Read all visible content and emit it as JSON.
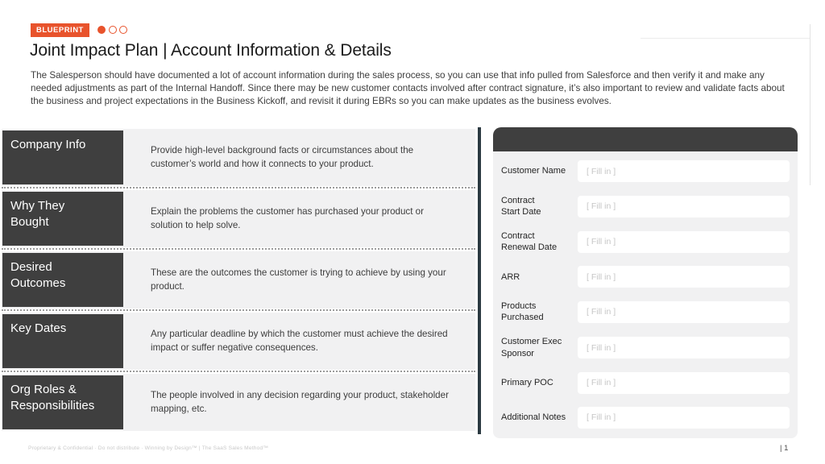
{
  "badge": {
    "label": "BLUEPRINT"
  },
  "progress_dots": {
    "total": 3,
    "active_index": 0
  },
  "header": {
    "title": "Joint Impact Plan | Account Information & Details",
    "description": "The Salesperson should have documented a lot of account information during the sales process, so you can use that info pulled from Salesforce and then verify it and make any needed adjustments as part of the Internal Handoff. Since there may be new customer contacts involved after contract signature, it’s also important to review and validate facts about the business and project expectations in the Business Kickoff, and revisit it during EBRs so you can make updates as the business evolves."
  },
  "info_table": {
    "rows": [
      {
        "label": "Company Info",
        "description": "Provide high-level background facts or circumstances about the customer’s world and how it connects to your product."
      },
      {
        "label": "Why They\nBought",
        "description": "Explain the problems the customer has purchased your product or solution to help solve."
      },
      {
        "label": "Desired\nOutcomes",
        "description": "These are the outcomes the customer is trying to achieve by using your product."
      },
      {
        "label": "Key Dates",
        "description": "Any particular deadline by which the customer must achieve the desired impact or suffer negative consequences."
      },
      {
        "label": "Org Roles &\nResponsibilities",
        "description": "The people involved in any decision regarding your product, stakeholder mapping, etc."
      }
    ]
  },
  "form_panel": {
    "fields": [
      {
        "label": "Customer Name",
        "placeholder": "[ Fill in ]"
      },
      {
        "label": "Contract\nStart Date",
        "placeholder": "[ Fill in ]"
      },
      {
        "label": "Contract\nRenewal Date",
        "placeholder": "[ Fill in ]"
      },
      {
        "label": "ARR",
        "placeholder": "[ Fill in ]"
      },
      {
        "label": "Products\nPurchased",
        "placeholder": "[ Fill in ]"
      },
      {
        "label": "Customer Exec\nSponsor",
        "placeholder": "[ Fill in ]"
      },
      {
        "label": "Primary POC",
        "placeholder": "[ Fill in ]"
      },
      {
        "label": "Additional Notes",
        "placeholder": "[ Fill in ]"
      }
    ]
  },
  "footer": {
    "note": "Proprietary & Confidential · Do not distribute · Winning by Design™  |  The SaaS Sales Method™",
    "page": "| 1"
  },
  "colors": {
    "accent_orange": "#E8532C",
    "dark_cell": "#3F3F3F",
    "panel_background": "#F1F1F2",
    "divider": "#2C3A42"
  }
}
